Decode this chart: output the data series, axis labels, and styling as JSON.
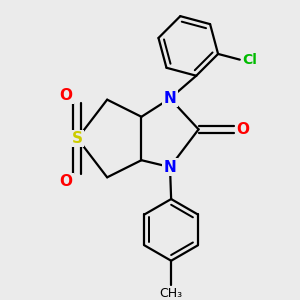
{
  "bg_color": "#ebebeb",
  "bond_color": "#000000",
  "N_color": "#0000ff",
  "S_color": "#cccc00",
  "O_color": "#ff0000",
  "Cl_color": "#00bb00",
  "line_width": 1.6,
  "fig_width": 3.0,
  "fig_height": 3.0,
  "dpi": 100,
  "xlim": [
    -2.2,
    2.3
  ],
  "ylim": [
    -2.6,
    2.4
  ]
}
